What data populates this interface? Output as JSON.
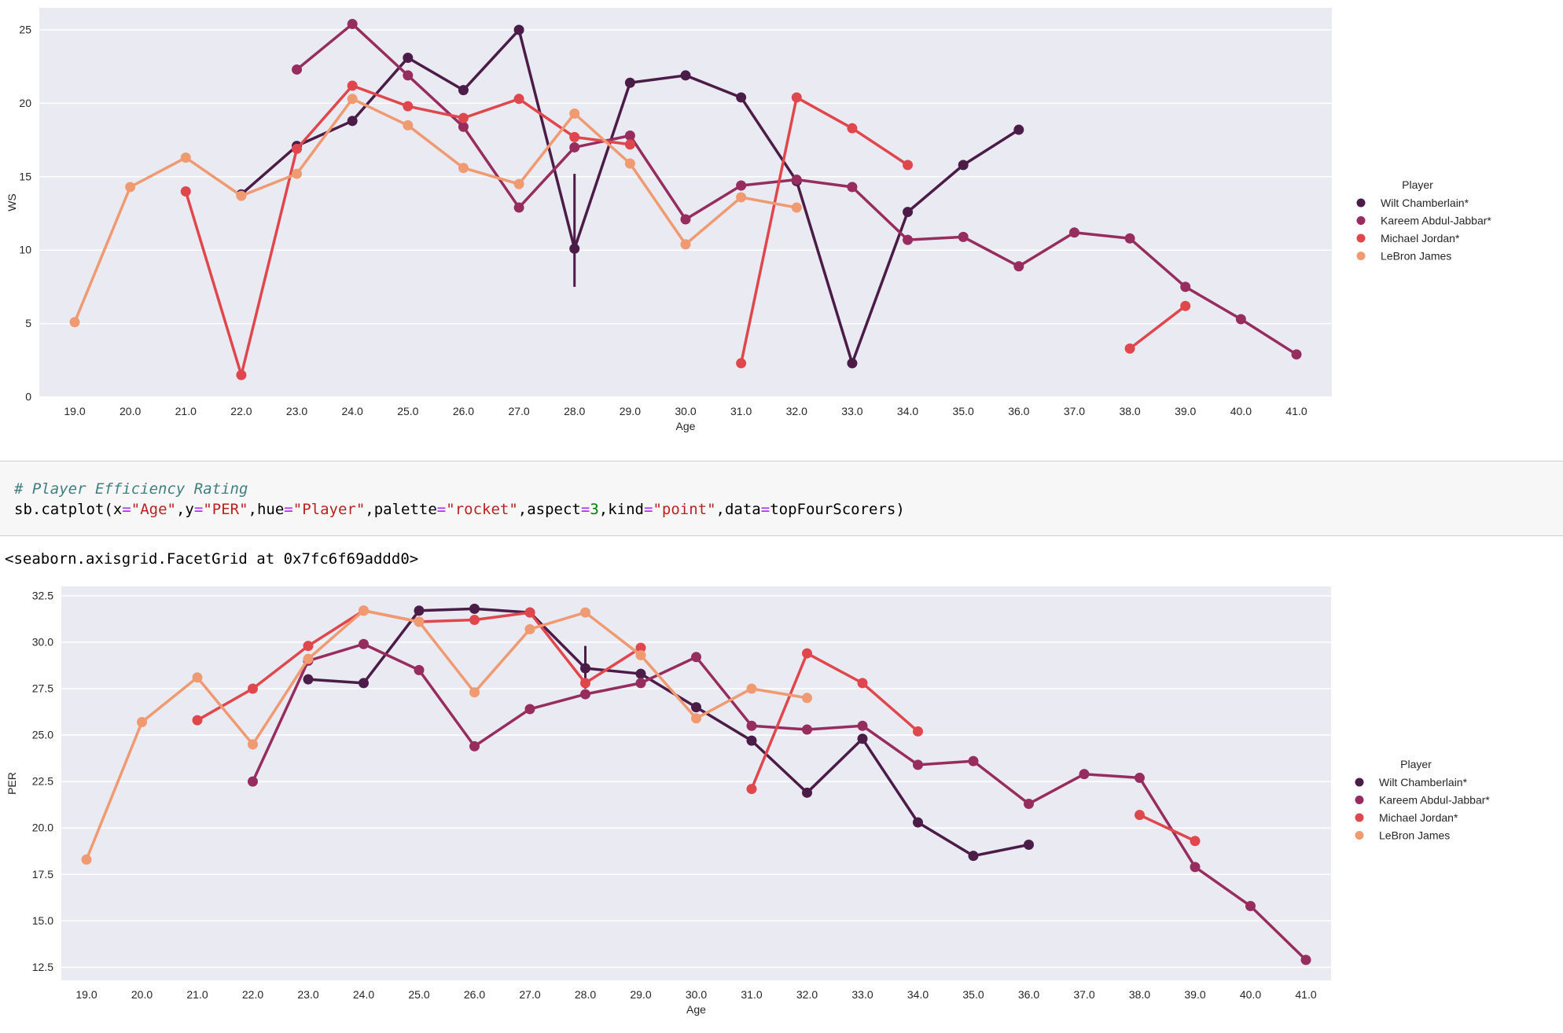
{
  "chart_data": [
    {
      "type": "line",
      "kind": "point",
      "xlabel": "Age",
      "ylabel": "WS",
      "x": [
        "19.0",
        "20.0",
        "21.0",
        "22.0",
        "23.0",
        "24.0",
        "25.0",
        "26.0",
        "27.0",
        "28.0",
        "29.0",
        "30.0",
        "31.0",
        "32.0",
        "33.0",
        "34.0",
        "35.0",
        "36.0",
        "37.0",
        "38.0",
        "39.0",
        "40.0",
        "41.0"
      ],
      "ylim": [
        0,
        26.5
      ],
      "yticks": [
        "0",
        "5",
        "10",
        "15",
        "20",
        "25"
      ],
      "legend_title": "Player",
      "legend_position": "center-right",
      "series": [
        {
          "name": "Wilt Chamberlain*",
          "color": "#4b1c47",
          "values": [
            null,
            null,
            null,
            13.8,
            17.1,
            18.8,
            23.1,
            20.9,
            25.0,
            10.1,
            21.4,
            21.9,
            20.4,
            14.7,
            2.3,
            12.6,
            15.8,
            18.2,
            null,
            null,
            null,
            null,
            null
          ],
          "error": [
            null,
            null,
            null,
            null,
            null,
            null,
            null,
            null,
            null,
            [
              7.5,
              15.2
            ],
            null,
            null,
            null,
            null,
            null,
            null,
            null,
            null,
            null,
            null,
            null,
            null,
            null
          ]
        },
        {
          "name": "Kareem Abdul-Jabbar*",
          "color": "#962d5e",
          "values": [
            null,
            null,
            null,
            null,
            22.3,
            25.4,
            21.9,
            18.4,
            12.9,
            17.0,
            17.8,
            12.1,
            14.4,
            14.8,
            14.3,
            10.7,
            10.9,
            8.9,
            11.2,
            10.8,
            7.5,
            5.3,
            2.9
          ]
        },
        {
          "name": "Michael Jordan*",
          "color": "#e0474c",
          "values": [
            null,
            null,
            14.0,
            1.5,
            16.9,
            21.2,
            19.8,
            19.0,
            20.3,
            17.7,
            17.2,
            null,
            2.3,
            20.4,
            18.3,
            15.8,
            null,
            null,
            null,
            3.3,
            6.2,
            null,
            null
          ]
        },
        {
          "name": "LeBron James",
          "color": "#f09a72",
          "values": [
            5.1,
            14.3,
            16.3,
            13.7,
            15.2,
            20.3,
            18.5,
            15.6,
            14.5,
            19.3,
            15.9,
            10.4,
            13.6,
            12.9,
            null,
            null,
            null,
            null,
            null,
            null,
            null,
            null,
            null
          ]
        }
      ]
    },
    {
      "type": "line",
      "kind": "point",
      "xlabel": "Age",
      "ylabel": "PER",
      "x": [
        "19.0",
        "20.0",
        "21.0",
        "22.0",
        "23.0",
        "24.0",
        "25.0",
        "26.0",
        "27.0",
        "28.0",
        "29.0",
        "30.0",
        "31.0",
        "32.0",
        "33.0",
        "34.0",
        "35.0",
        "36.0",
        "37.0",
        "38.0",
        "39.0",
        "40.0",
        "41.0"
      ],
      "ylim": [
        11.8,
        33.0
      ],
      "yticks": [
        "12.5",
        "15.0",
        "17.5",
        "20.0",
        "22.5",
        "25.0",
        "27.5",
        "30.0",
        "32.5"
      ],
      "legend_title": "Player",
      "legend_position": "center-right",
      "series": [
        {
          "name": "Wilt Chamberlain*",
          "color": "#4b1c47",
          "values": [
            null,
            null,
            null,
            null,
            28.0,
            27.8,
            31.7,
            31.8,
            31.6,
            28.6,
            28.3,
            26.5,
            24.7,
            21.9,
            24.8,
            20.3,
            18.5,
            19.1,
            null,
            null,
            null,
            null,
            null
          ],
          "error": [
            null,
            null,
            null,
            null,
            null,
            null,
            null,
            null,
            null,
            [
              27.5,
              29.8
            ],
            null,
            null,
            null,
            null,
            null,
            null,
            null,
            null,
            null,
            null,
            null,
            null,
            null
          ]
        },
        {
          "name": "Kareem Abdul-Jabbar*",
          "color": "#962d5e",
          "values": [
            null,
            null,
            null,
            22.5,
            29.0,
            29.9,
            28.5,
            24.4,
            26.4,
            27.2,
            27.8,
            29.2,
            25.5,
            25.3,
            25.5,
            23.4,
            23.6,
            21.3,
            22.9,
            22.7,
            17.9,
            15.8,
            12.9
          ]
        },
        {
          "name": "Michael Jordan*",
          "color": "#e0474c",
          "values": [
            null,
            null,
            25.8,
            27.5,
            29.8,
            31.7,
            31.1,
            31.2,
            31.6,
            27.8,
            29.7,
            null,
            22.1,
            29.4,
            27.8,
            25.2,
            null,
            null,
            null,
            20.7,
            19.3,
            null,
            null
          ]
        },
        {
          "name": "LeBron James",
          "color": "#f09a72",
          "values": [
            18.3,
            25.7,
            28.1,
            24.5,
            29.1,
            31.7,
            31.1,
            27.3,
            30.7,
            31.6,
            29.3,
            25.9,
            27.5,
            27.0,
            null,
            null,
            null,
            null,
            null,
            null,
            null,
            null,
            null
          ]
        }
      ]
    }
  ],
  "notebook": {
    "comment": "# Player Efficiency Rating",
    "code": {
      "func": "sb.catplot(",
      "x_key": "x",
      "x_val": "\"Age\"",
      "y_key": "y",
      "y_val": "\"PER\"",
      "hue_key": "hue",
      "hue_val": "\"Player\"",
      "palette_key": "palette",
      "palette_val": "\"rocket\"",
      "aspect_key": "aspect",
      "aspect_val": "3",
      "kind_key": "kind",
      "kind_val": "\"point\"",
      "data_key": "data",
      "data_val": "topFourScorers",
      "close": ")"
    },
    "output": "<seaborn.axisgrid.FacetGrid at 0x7fc6f69addd0>"
  }
}
